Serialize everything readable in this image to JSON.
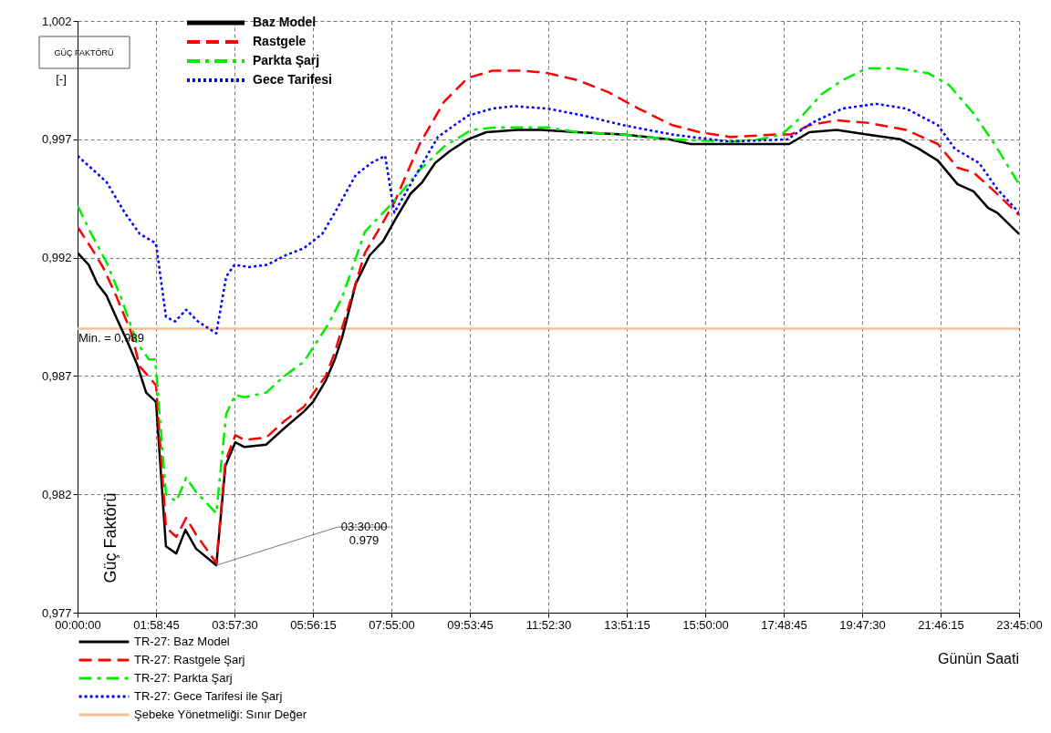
{
  "chart_data": {
    "type": "line",
    "xlabel": "Günün Saati",
    "ylabel": "Güç Faktörü",
    "xlim": [
      0,
      23.75
    ],
    "xticks": [
      {
        "value": 0,
        "label": "00:00:00"
      },
      {
        "value": 1.9791667,
        "label": "01:58:45"
      },
      {
        "value": 3.9583333,
        "label": "03:57:30"
      },
      {
        "value": 5.9375,
        "label": "05:56:15"
      },
      {
        "value": 7.9166667,
        "label": "07:55:00"
      },
      {
        "value": 9.8958333,
        "label": "09:53:45"
      },
      {
        "value": 11.875,
        "label": "11:52:30"
      },
      {
        "value": 13.8541667,
        "label": "13:51:15"
      },
      {
        "value": 15.8333333,
        "label": "15:50:00"
      },
      {
        "value": 17.8125,
        "label": "17:48:45"
      },
      {
        "value": 19.7916667,
        "label": "19:47:30"
      },
      {
        "value": 21.7708333,
        "label": "21:46:15"
      },
      {
        "value": 23.75,
        "label": "23:45:00"
      }
    ],
    "ylim": [
      0.977,
      1.002
    ],
    "yticks": [
      {
        "value": 0.977,
        "label": "0,977"
      },
      {
        "value": 0.982,
        "label": "0,982"
      },
      {
        "value": 0.987,
        "label": "0,987"
      },
      {
        "value": 0.992,
        "label": "0,992"
      },
      {
        "value": 0.997,
        "label": "0,997"
      },
      {
        "value": 1.002,
        "label": "1,002"
      }
    ],
    "grid": true,
    "legend": "bottom left",
    "series": [
      {
        "name": "TR-27: Baz Model",
        "color": "#000000",
        "line_style": "solid",
        "x": [
          0,
          0.28,
          0.5,
          0.73,
          0.97,
          1.27,
          1.5,
          1.73,
          1.98,
          2.23,
          2.49,
          2.72,
          2.99,
          3.5,
          3.73,
          3.98,
          4.21,
          4.76,
          5.22,
          5.71,
          5.94,
          6.26,
          6.49,
          6.67,
          7.02,
          7.37,
          7.71,
          8.01,
          8.4,
          8.7,
          9.02,
          9.39,
          9.85,
          10.31,
          11.09,
          11.69,
          12.61,
          13.76,
          14.91,
          15.47,
          16.46,
          17.95,
          18.46,
          19.15,
          19.91,
          20.76,
          21.22,
          21.7,
          22.2,
          22.6,
          22.97,
          23.2,
          23.75
        ],
        "values": [
          0.9922,
          0.9917,
          0.9909,
          0.9904,
          0.9895,
          0.9884,
          0.9875,
          0.9863,
          0.9859,
          0.9798,
          0.9795,
          0.9805,
          0.9797,
          0.979,
          0.9832,
          0.9842,
          0.984,
          0.9841,
          0.9848,
          0.9855,
          0.9859,
          0.9868,
          0.9877,
          0.9886,
          0.9909,
          0.9921,
          0.9927,
          0.9936,
          0.9947,
          0.9952,
          0.996,
          0.9965,
          0.997,
          0.9973,
          0.9974,
          0.9974,
          0.9973,
          0.9972,
          0.997,
          0.9968,
          0.9968,
          0.9968,
          0.9973,
          0.9974,
          0.9972,
          0.997,
          0.9966,
          0.9961,
          0.9951,
          0.9948,
          0.9941,
          0.9939,
          0.993
        ]
      },
      {
        "name": "TR-27: Rastgele Şarj",
        "color": "#ff0000",
        "line_style": "dashed",
        "x": [
          0,
          0.35,
          0.64,
          0.97,
          1.34,
          1.57,
          1.73,
          1.98,
          2.23,
          2.49,
          2.74,
          2.99,
          3.5,
          3.73,
          3.98,
          4.21,
          4.76,
          5.22,
          5.71,
          6.26,
          6.49,
          6.67,
          7.25,
          7.71,
          8.01,
          8.63,
          9.25,
          9.85,
          10.47,
          11.23,
          11.85,
          12.61,
          13.38,
          14.15,
          15.0,
          15.69,
          16.46,
          17.6,
          17.99,
          18.46,
          19.15,
          19.91,
          20.9,
          21.7,
          22.2,
          22.6,
          23.13,
          23.75
        ],
        "values": [
          0.9933,
          0.9924,
          0.9916,
          0.9904,
          0.9889,
          0.9874,
          0.9871,
          0.9866,
          0.9806,
          0.9802,
          0.981,
          0.9803,
          0.9791,
          0.9834,
          0.9845,
          0.9843,
          0.9844,
          0.9851,
          0.9857,
          0.987,
          0.988,
          0.989,
          0.9922,
          0.9935,
          0.9944,
          0.9968,
          0.9986,
          0.9996,
          0.9999,
          0.9999,
          0.9998,
          0.9995,
          0.999,
          0.9983,
          0.9976,
          0.9973,
          0.9971,
          0.9972,
          0.9972,
          0.9976,
          0.9978,
          0.9977,
          0.9974,
          0.9968,
          0.9958,
          0.9956,
          0.9948,
          0.9938
        ]
      },
      {
        "name": "TR-27: Parkta Şarj",
        "color": "#00ee00",
        "line_style": "dashdot",
        "x": [
          0,
          0.35,
          0.73,
          1.1,
          1.5,
          1.8,
          1.96,
          2.23,
          2.49,
          2.74,
          2.99,
          3.5,
          3.75,
          3.98,
          4.21,
          4.76,
          5.22,
          5.71,
          5.94,
          6.33,
          6.67,
          7.25,
          7.94,
          8.63,
          9.25,
          9.94,
          10.54,
          11.23,
          11.85,
          12.61,
          13.76,
          14.91,
          16.46,
          17.21,
          17.76,
          18.23,
          18.76,
          19.3,
          19.91,
          20.67,
          21.45,
          21.98,
          22.6,
          23.13,
          23.75
        ],
        "values": [
          0.9942,
          0.993,
          0.9918,
          0.9903,
          0.9884,
          0.9877,
          0.9877,
          0.982,
          0.9817,
          0.9827,
          0.9821,
          0.9812,
          0.9854,
          0.9862,
          0.9861,
          0.9863,
          0.987,
          0.9876,
          0.9882,
          0.9892,
          0.9903,
          0.9931,
          0.9943,
          0.9957,
          0.9967,
          0.9974,
          0.9975,
          0.9975,
          0.9975,
          0.9973,
          0.9972,
          0.997,
          0.9969,
          0.997,
          0.9972,
          0.9979,
          0.9989,
          0.9995,
          1.0,
          1.0,
          0.9998,
          0.9993,
          0.9981,
          0.9968,
          0.9951
        ]
      },
      {
        "name": "TR-27: Gece Tarifesi ile Şarj",
        "color": "#0000ff",
        "line_style": "dotted",
        "x": [
          0,
          0.73,
          1.19,
          1.57,
          1.98,
          2.23,
          2.46,
          2.74,
          3.04,
          3.5,
          3.75,
          3.96,
          4.33,
          4.79,
          5.25,
          5.71,
          6.17,
          6.49,
          7.02,
          7.41,
          7.76,
          7.99,
          8.4,
          9.09,
          9.85,
          10.47,
          11.0,
          11.85,
          12.77,
          13.76,
          15.0,
          16.46,
          17.91,
          18.53,
          19.3,
          20.14,
          20.9,
          21.7,
          22.13,
          22.74,
          23.2,
          23.75
        ],
        "values": [
          0.9963,
          0.9952,
          0.9939,
          0.993,
          0.9926,
          0.9895,
          0.9893,
          0.9898,
          0.9893,
          0.9888,
          0.9912,
          0.9917,
          0.9916,
          0.9917,
          0.9921,
          0.9924,
          0.993,
          0.9939,
          0.9955,
          0.996,
          0.9963,
          0.9939,
          0.9951,
          0.9971,
          0.998,
          0.9983,
          0.9984,
          0.9983,
          0.998,
          0.9976,
          0.9972,
          0.9969,
          0.997,
          0.9977,
          0.9983,
          0.9985,
          0.9983,
          0.9976,
          0.9966,
          0.996,
          0.9949,
          0.9939
        ]
      }
    ],
    "ref_lines": [
      {
        "axis": "y",
        "value": 0.989,
        "label": "Şebeke Yönetmeliği: Sınır Değer",
        "color": "#f8c090"
      }
    ],
    "annotations": [
      "GÜÇ FAKTÖRÜ",
      "[-]",
      {
        "text": "Min. = 0,989",
        "x": 0,
        "y": 0.989
      },
      {
        "text": "03:30:00\n0.979",
        "x": 3.5,
        "y": 0.979
      },
      "Baz Model",
      "Rastgele",
      "Parkta Şarj",
      "Gece Tarifesi"
    ]
  }
}
